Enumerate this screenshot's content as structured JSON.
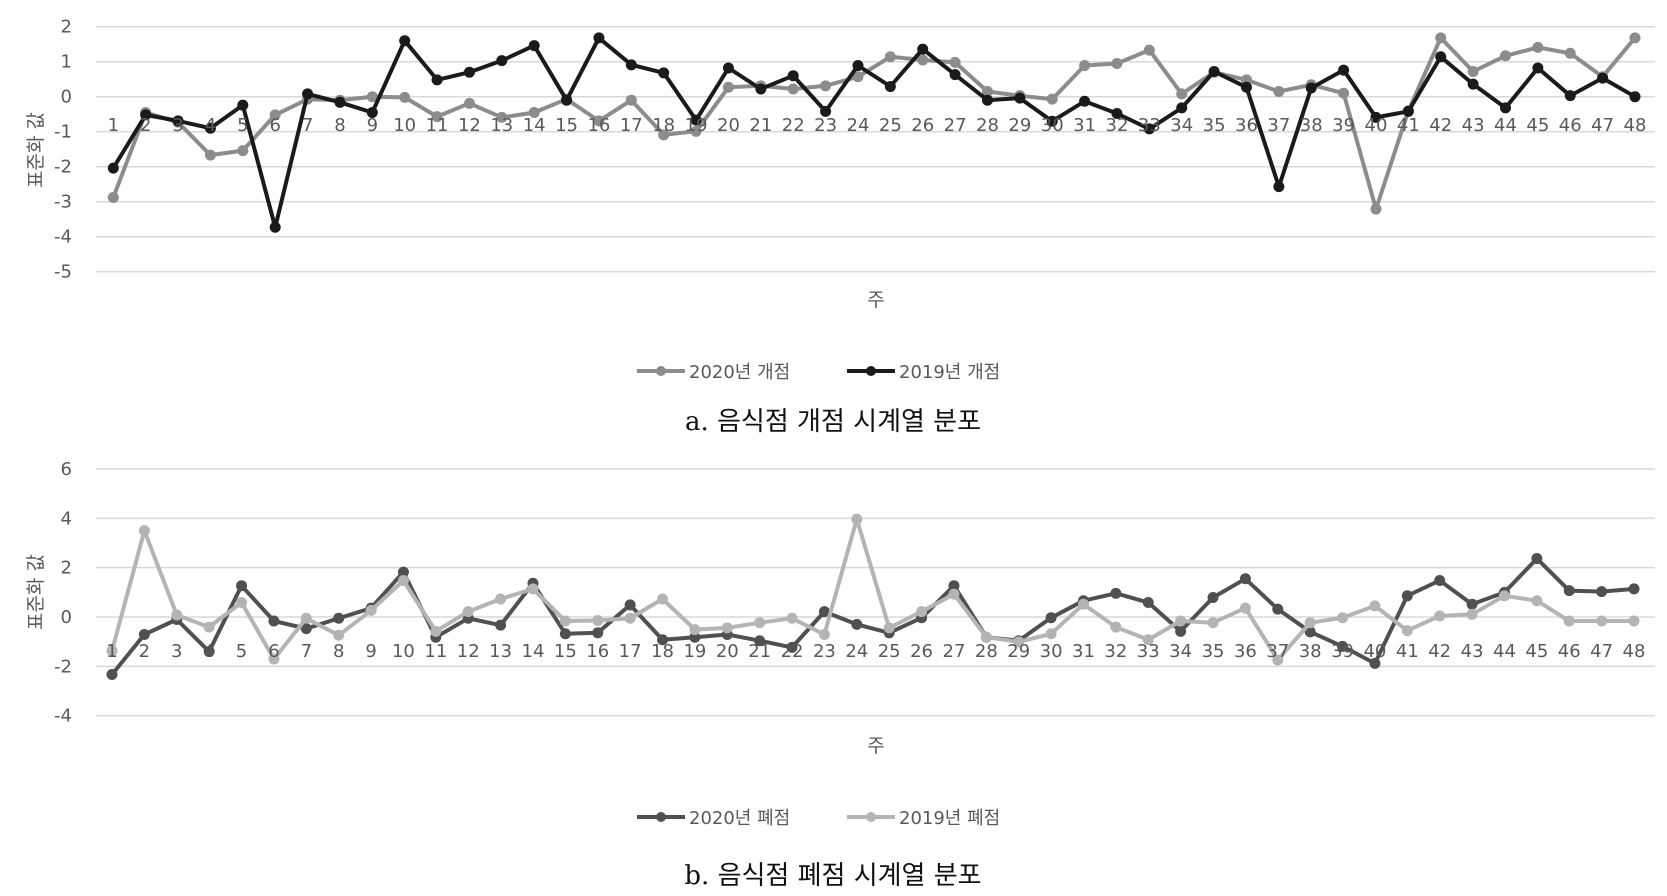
{
  "chart_data": [
    {
      "type": "line",
      "caption": "a. 음식점 개점 시계열 분포",
      "xlabel": "주",
      "ylabel": "표준화 값",
      "ylim": [
        -5,
        2
      ],
      "yticks": [
        2,
        1,
        0,
        -1,
        -2,
        -3,
        -4,
        -5
      ],
      "grid": true,
      "legend_position": "bottom",
      "x": [
        1,
        2,
        3,
        4,
        5,
        6,
        7,
        8,
        9,
        10,
        11,
        12,
        13,
        14,
        15,
        16,
        17,
        18,
        19,
        20,
        21,
        22,
        23,
        24,
        25,
        26,
        27,
        28,
        29,
        30,
        31,
        32,
        33,
        34,
        35,
        36,
        37,
        38,
        39,
        40,
        41,
        42,
        43,
        44,
        45,
        46,
        47,
        48
      ],
      "series": [
        {
          "name": "2020년 개점",
          "color": "#8c8c8c",
          "values": [
            -2.88,
            -0.45,
            -0.73,
            -1.67,
            -1.54,
            -0.52,
            -0.07,
            -0.1,
            0.0,
            -0.02,
            -0.57,
            -0.19,
            -0.59,
            -0.45,
            -0.07,
            -0.69,
            -0.1,
            -1.09,
            -0.99,
            0.27,
            0.31,
            0.22,
            0.31,
            0.57,
            1.14,
            1.05,
            0.98,
            0.15,
            0.03,
            -0.07,
            0.89,
            0.95,
            1.33,
            0.08,
            0.7,
            0.48,
            0.15,
            0.34,
            0.1,
            -3.21,
            -0.4,
            1.68,
            0.72,
            1.17,
            1.41,
            1.24,
            0.57,
            1.68
          ]
        },
        {
          "name": "2019년 개점",
          "color": "#1a1a1a",
          "values": [
            -2.04,
            -0.52,
            -0.69,
            -0.9,
            -0.24,
            -3.73,
            0.08,
            -0.16,
            -0.45,
            1.6,
            0.48,
            0.7,
            1.03,
            1.46,
            -0.1,
            1.68,
            0.91,
            0.68,
            -0.67,
            0.82,
            0.22,
            0.6,
            -0.42,
            0.89,
            0.29,
            1.36,
            0.63,
            -0.1,
            -0.04,
            -0.7,
            -0.13,
            -0.48,
            -0.92,
            -0.32,
            0.72,
            0.27,
            -2.57,
            0.25,
            0.76,
            -0.59,
            -0.42,
            1.14,
            0.36,
            -0.32,
            0.82,
            0.03,
            0.53,
            0.0
          ]
        }
      ]
    },
    {
      "type": "line",
      "caption": "b. 음식점 폐점 시계열 분포",
      "xlabel": "주",
      "ylabel": "표준화 값",
      "ylim": [
        -4,
        6
      ],
      "yticks": [
        6,
        4,
        2,
        0,
        -2,
        -4
      ],
      "grid": true,
      "legend_position": "bottom",
      "x": [
        1,
        2,
        3,
        4,
        5,
        6,
        7,
        8,
        9,
        10,
        11,
        12,
        13,
        14,
        15,
        16,
        17,
        18,
        19,
        20,
        21,
        22,
        23,
        24,
        25,
        26,
        27,
        28,
        29,
        30,
        31,
        32,
        33,
        34,
        35,
        36,
        37,
        38,
        39,
        40,
        41,
        42,
        43,
        44,
        45,
        46,
        47,
        48
      ],
      "series": [
        {
          "name": "2020년 폐점",
          "color": "#505050",
          "values": [
            -2.33,
            -0.71,
            -0.1,
            -1.4,
            1.27,
            -0.16,
            -0.47,
            -0.05,
            0.36,
            1.82,
            -0.82,
            -0.05,
            -0.33,
            1.37,
            -0.68,
            -0.64,
            0.49,
            -0.92,
            -0.82,
            -0.71,
            -0.96,
            -1.23,
            0.22,
            -0.3,
            -0.64,
            -0.03,
            1.27,
            -0.82,
            -0.96,
            -0.03,
            0.66,
            0.96,
            0.59,
            -0.58,
            0.79,
            1.55,
            0.32,
            -0.6,
            -1.19,
            -1.88,
            0.86,
            1.48,
            0.52,
            1.0,
            2.37,
            1.07,
            1.03,
            1.14
          ]
        },
        {
          "name": "2019년 폐점",
          "color": "#b4b4b4",
          "values": [
            -1.37,
            3.5,
            0.08,
            -0.41,
            0.59,
            -1.7,
            -0.05,
            -0.74,
            0.27,
            1.48,
            -0.58,
            0.22,
            0.73,
            1.14,
            -0.16,
            -0.14,
            -0.05,
            0.73,
            -0.51,
            -0.44,
            -0.23,
            -0.05,
            -0.71,
            3.97,
            -0.44,
            0.22,
            0.93,
            -0.82,
            -1.01,
            -0.68,
            0.52,
            -0.41,
            -0.92,
            -0.16,
            -0.23,
            0.36,
            -1.74,
            -0.23,
            -0.03,
            0.45,
            -0.55,
            0.04,
            0.11,
            0.86,
            0.66,
            -0.16,
            -0.16,
            -0.16
          ]
        }
      ]
    }
  ]
}
